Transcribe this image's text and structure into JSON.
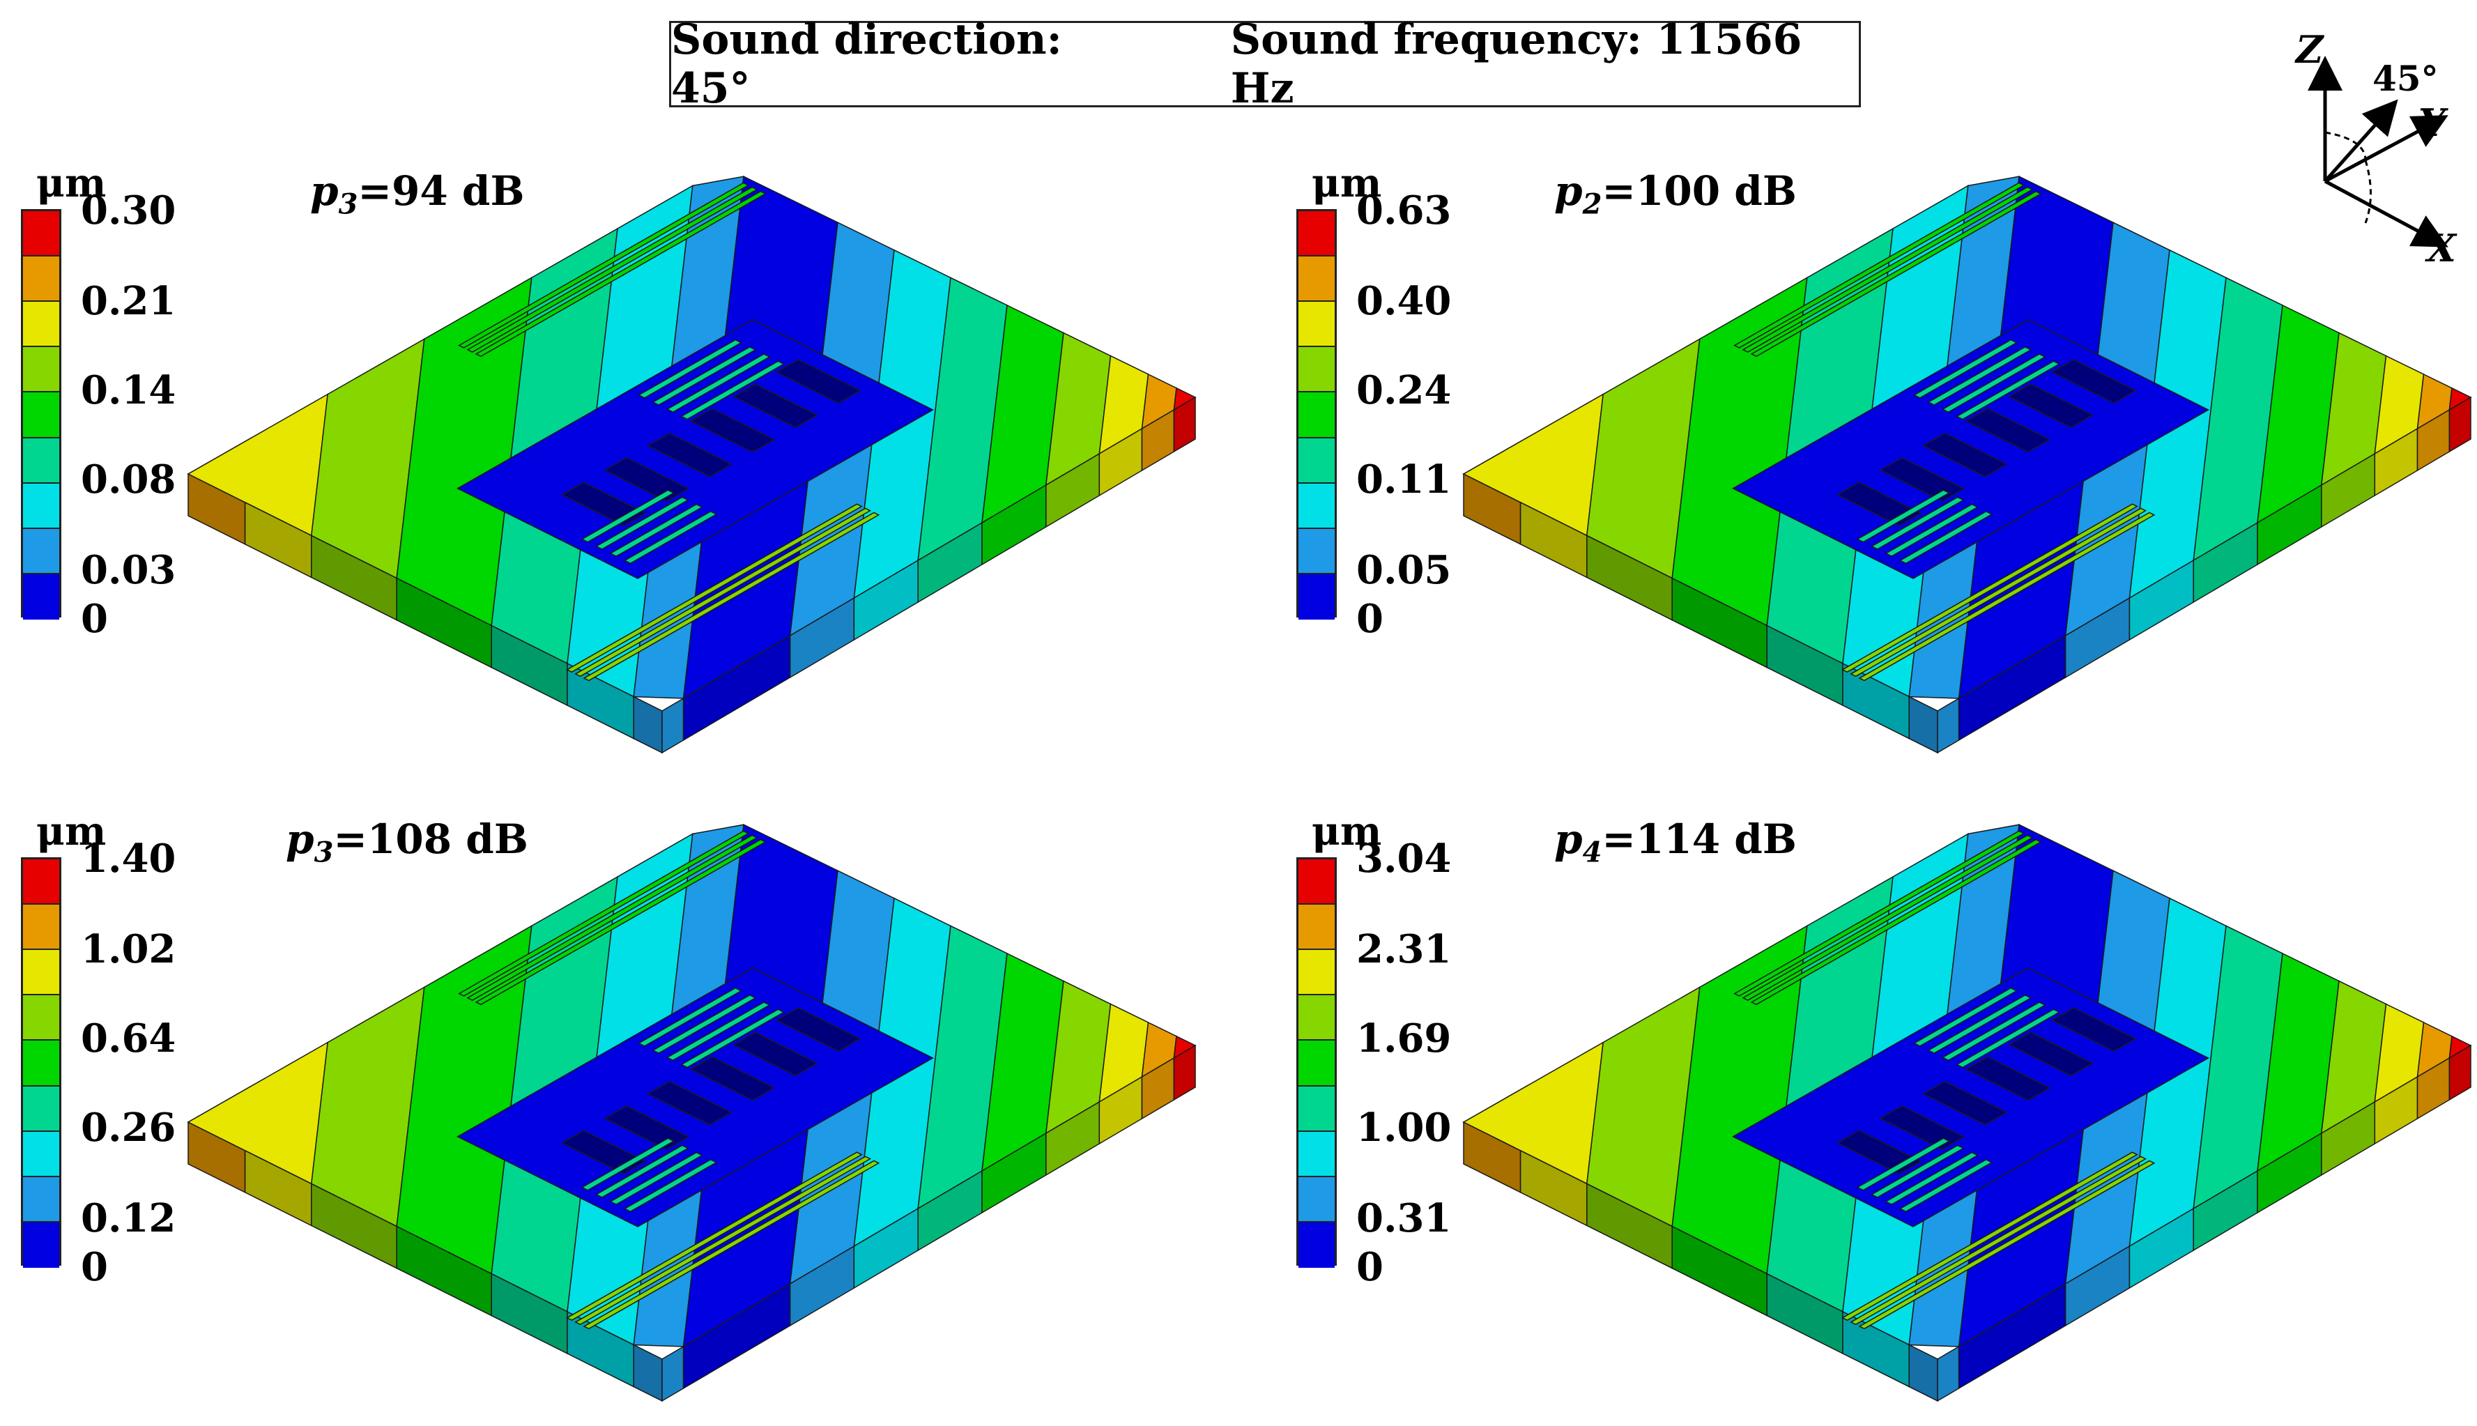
{
  "header": {
    "direction": "Sound direction: 45°",
    "frequency": "Sound frequency: 11566 Hz"
  },
  "axes": {
    "z": "Z",
    "y": "Y",
    "x": "X",
    "angle": "45°"
  },
  "colormap": [
    "#0000e0",
    "#1e9ae6",
    "#00e0e6",
    "#00d690",
    "#00d600",
    "#86d600",
    "#e6e600",
    "#e69a00",
    "#e60000"
  ],
  "panels": [
    {
      "id": "top-left",
      "p_symbol": "p",
      "p_sub": "3",
      "p_value": "=94 dB",
      "unit": "μm",
      "ticks": [
        "0.30",
        "0.21",
        "0.14",
        "0.08",
        "0.03",
        "0"
      ]
    },
    {
      "id": "top-right",
      "p_symbol": "p",
      "p_sub": "2",
      "p_value": "=100 dB",
      "unit": "μm",
      "ticks": [
        "0.63",
        "0.40",
        "0.24",
        "0.11",
        "0.05",
        "0"
      ]
    },
    {
      "id": "bottom-left",
      "p_symbol": "p",
      "p_sub": "3",
      "p_value": "=108 dB",
      "unit": "μm",
      "ticks": [
        "1.40",
        "1.02",
        "0.64",
        "0.26",
        "0.12",
        "0"
      ]
    },
    {
      "id": "bottom-right",
      "p_symbol": "p",
      "p_sub": "4",
      "p_value": "=114 dB",
      "unit": "μm",
      "ticks": [
        "3.04",
        "2.31",
        "1.69",
        "1.00",
        "0.31",
        "0"
      ]
    }
  ]
}
